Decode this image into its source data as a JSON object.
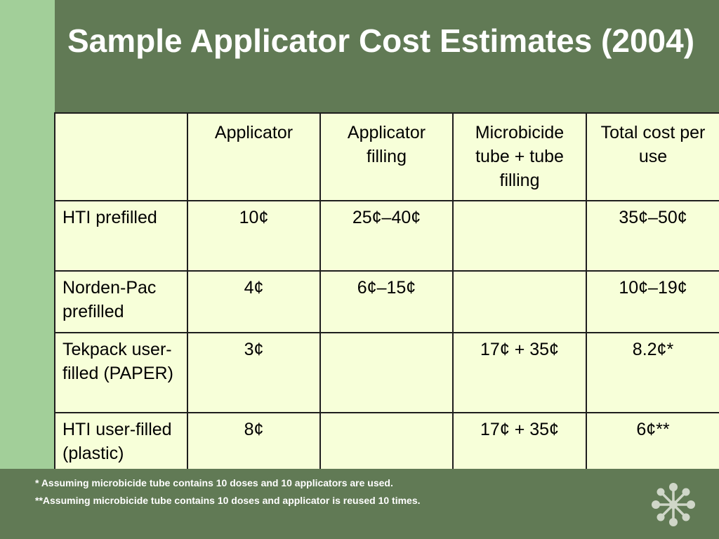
{
  "slide": {
    "title": "Sample Applicator Cost Estimates (2004)"
  },
  "table": {
    "headers": [
      "",
      "Applicator",
      "Applicator filling",
      "Microbicide tube + tube filling",
      "Total cost per use"
    ],
    "rows": [
      [
        "HTI prefilled",
        "10¢",
        "25¢–40¢",
        "",
        "35¢–50¢"
      ],
      [
        "Norden-Pac prefilled",
        "4¢",
        "6¢–15¢",
        "",
        "10¢–19¢"
      ],
      [
        "Tekpack user-filled (PAPER)",
        "3¢",
        "",
        "17¢ + 35¢",
        "8.2¢*"
      ],
      [
        "HTI user-filled (plastic)",
        "8¢",
        "",
        "17¢ + 35¢",
        "6¢**"
      ]
    ]
  },
  "footnotes": [
    "* Assuming microbicide tube contains 10 doses and 10 applicators are used.",
    "**Assuming microbicide tube contains 10 doses and applicator is reused 10 times."
  ],
  "colors": {
    "background": "#617a55",
    "accent_strip": "#a2cf99",
    "table_fill": "#f7ffd9"
  },
  "icons": {
    "logo": "flower-logo-icon"
  }
}
